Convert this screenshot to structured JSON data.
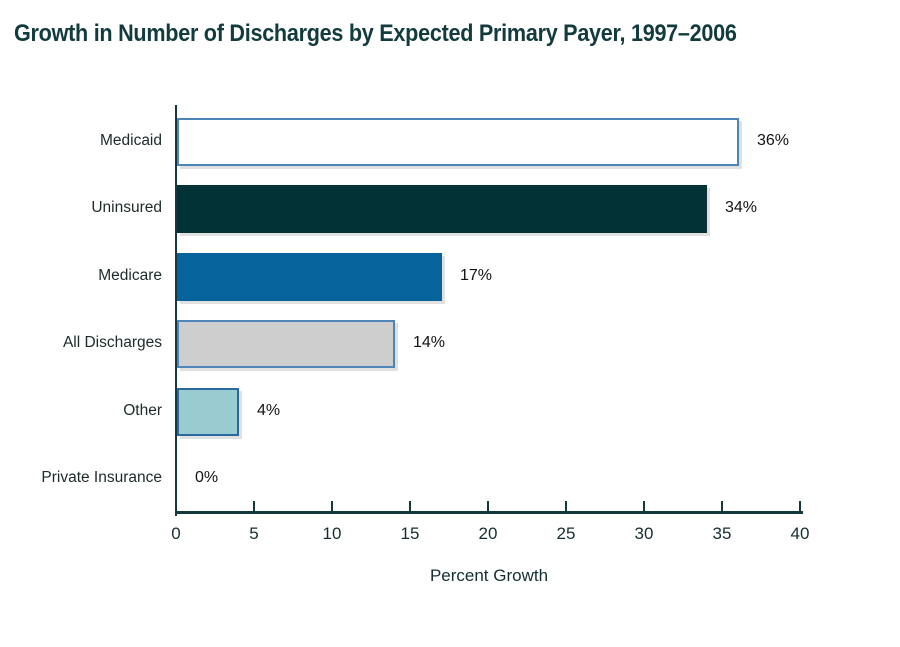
{
  "title": "Growth in Number of Discharges by Expected Primary Payer, 1997–2006",
  "chart_data": {
    "type": "bar",
    "orientation": "horizontal",
    "title": "Growth in Number of Discharges by Expected Primary Payer, 1997–2006",
    "xlabel": "Percent Growth",
    "xlim": [
      0,
      40
    ],
    "xticks": [
      0,
      5,
      10,
      15,
      20,
      25,
      30,
      35,
      40
    ],
    "grid": false,
    "legend": false,
    "categories": [
      "Medicaid",
      "Uninsured",
      "Medicare",
      "All Discharges",
      "Other",
      "Private Insurance"
    ],
    "values": [
      36,
      34,
      17,
      14,
      4,
      0
    ],
    "bars": [
      {
        "label": "Medicaid",
        "value": 36,
        "display": "36%",
        "fill": "#ffffff",
        "border": "#4c86b8"
      },
      {
        "label": "Uninsured",
        "value": 34,
        "display": "34%",
        "fill": "#023236",
        "border": "#023236"
      },
      {
        "label": "Medicare",
        "value": 17,
        "display": "17%",
        "fill": "#06639c",
        "border": "#06639c"
      },
      {
        "label": "All Discharges",
        "value": 14,
        "display": "14%",
        "fill": "#cecece",
        "border": "#4c86b8"
      },
      {
        "label": "Other",
        "value": 4,
        "display": "4%",
        "fill": "#9acbd0",
        "border": "#2869a0"
      },
      {
        "label": "Private Insurance",
        "value": 0,
        "display": "0%",
        "fill": null,
        "border": null
      }
    ],
    "colors": {
      "title_text": "#123b3d",
      "axis": "#15393b",
      "category_text": "#1c2a2a",
      "value_text": "#121212"
    }
  }
}
